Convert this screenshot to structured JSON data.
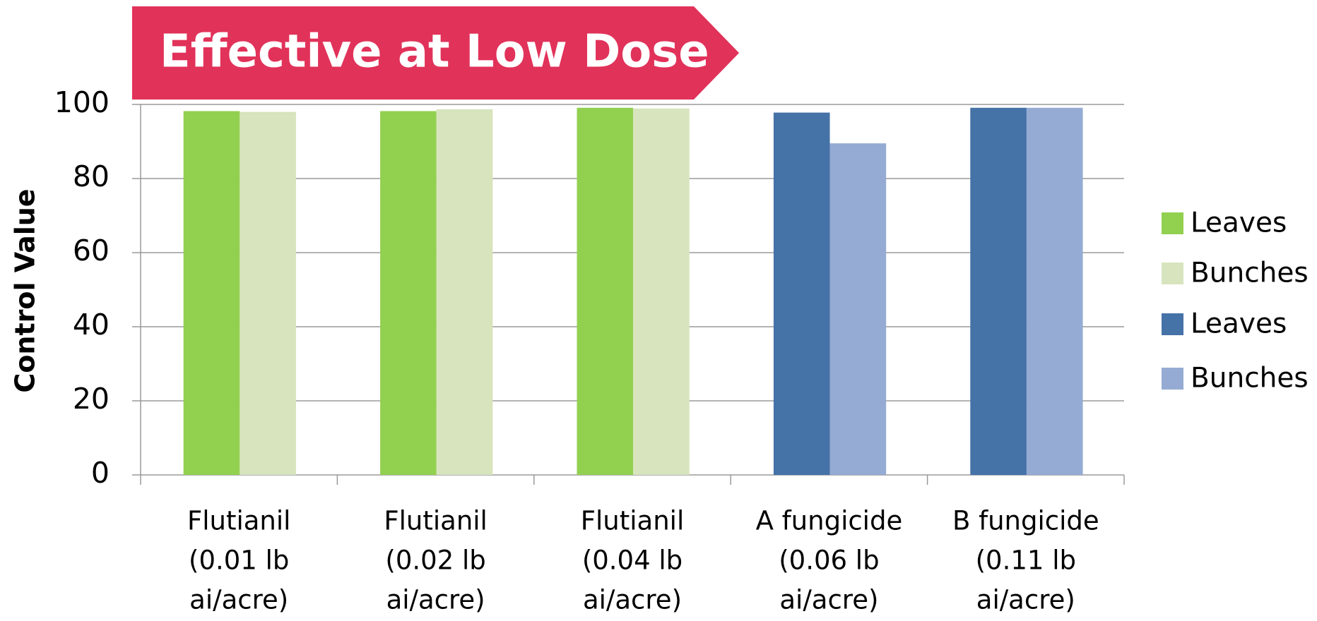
{
  "chart_data": {
    "type": "bar",
    "title": "Effective at Low Dose",
    "y_label": "Control Value",
    "categories": [
      [
        "Flutianil",
        "(0.01 lb",
        "ai/acre)"
      ],
      [
        "Flutianil",
        "(0.02 lb",
        "ai/acre)"
      ],
      [
        "Flutianil",
        "(0.04 lb",
        "ai/acre)"
      ],
      [
        "A fungicide",
        "(0.06 lb",
        "ai/acre)"
      ],
      [
        "B fungicide",
        "(0.11 lb",
        "ai/acre)"
      ]
    ],
    "series": [
      {
        "name": "Leaves",
        "color": "#92d050",
        "values": [
          98.2,
          98.2,
          99.1,
          null,
          null
        ]
      },
      {
        "name": "Bunches",
        "color": "#d7e4bd",
        "values": [
          98.0,
          98.7,
          98.9,
          null,
          null
        ]
      },
      {
        "name": "Leaves",
        "color": "#4572a7",
        "values": [
          null,
          null,
          null,
          97.8,
          99.1
        ]
      },
      {
        "name": "Bunches",
        "color": "#95abd3",
        "values": [
          null,
          null,
          null,
          89.5,
          99.1
        ]
      }
    ],
    "ylim": [
      0,
      100
    ],
    "yticks": [
      0,
      20,
      40,
      60,
      80,
      100
    ],
    "grid": true,
    "legend": "right"
  }
}
